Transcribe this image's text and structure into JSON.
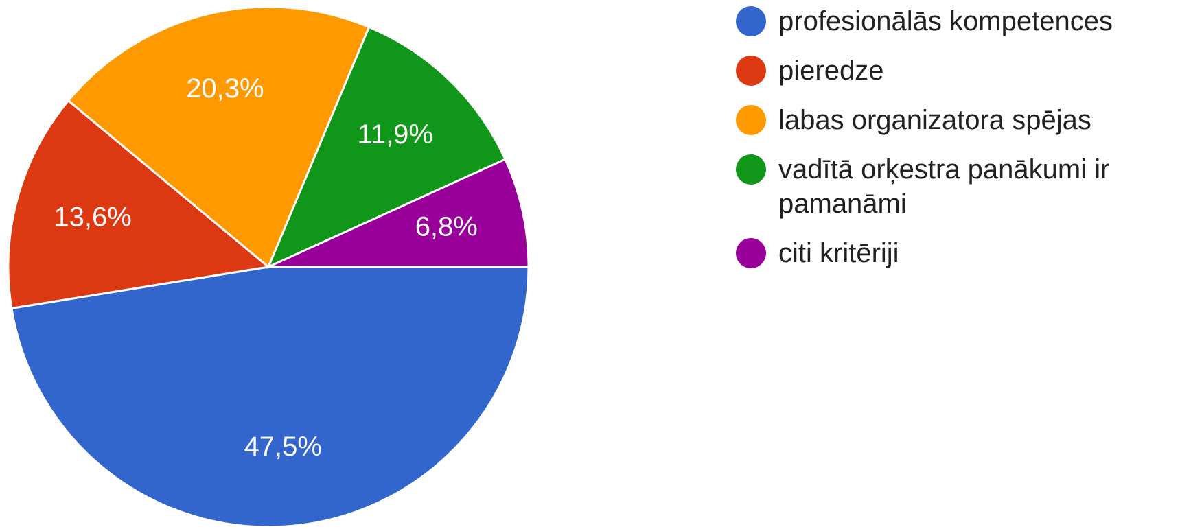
{
  "chart_data": {
    "type": "pie",
    "categories": [
      "profesionālās kompetences",
      "pieredze",
      "labas organizatora spējas",
      "vadītā orķestra panākumi ir pamanāmi",
      "citi kritēriji"
    ],
    "values": [
      47.5,
      13.6,
      20.3,
      11.9,
      6.8
    ],
    "value_labels": [
      "47,5%",
      "13,6%",
      "20,3%",
      "11,9%",
      "6,8%"
    ],
    "colors": [
      "#3366cc",
      "#dc3912",
      "#ff9900",
      "#109618",
      "#990099"
    ]
  }
}
